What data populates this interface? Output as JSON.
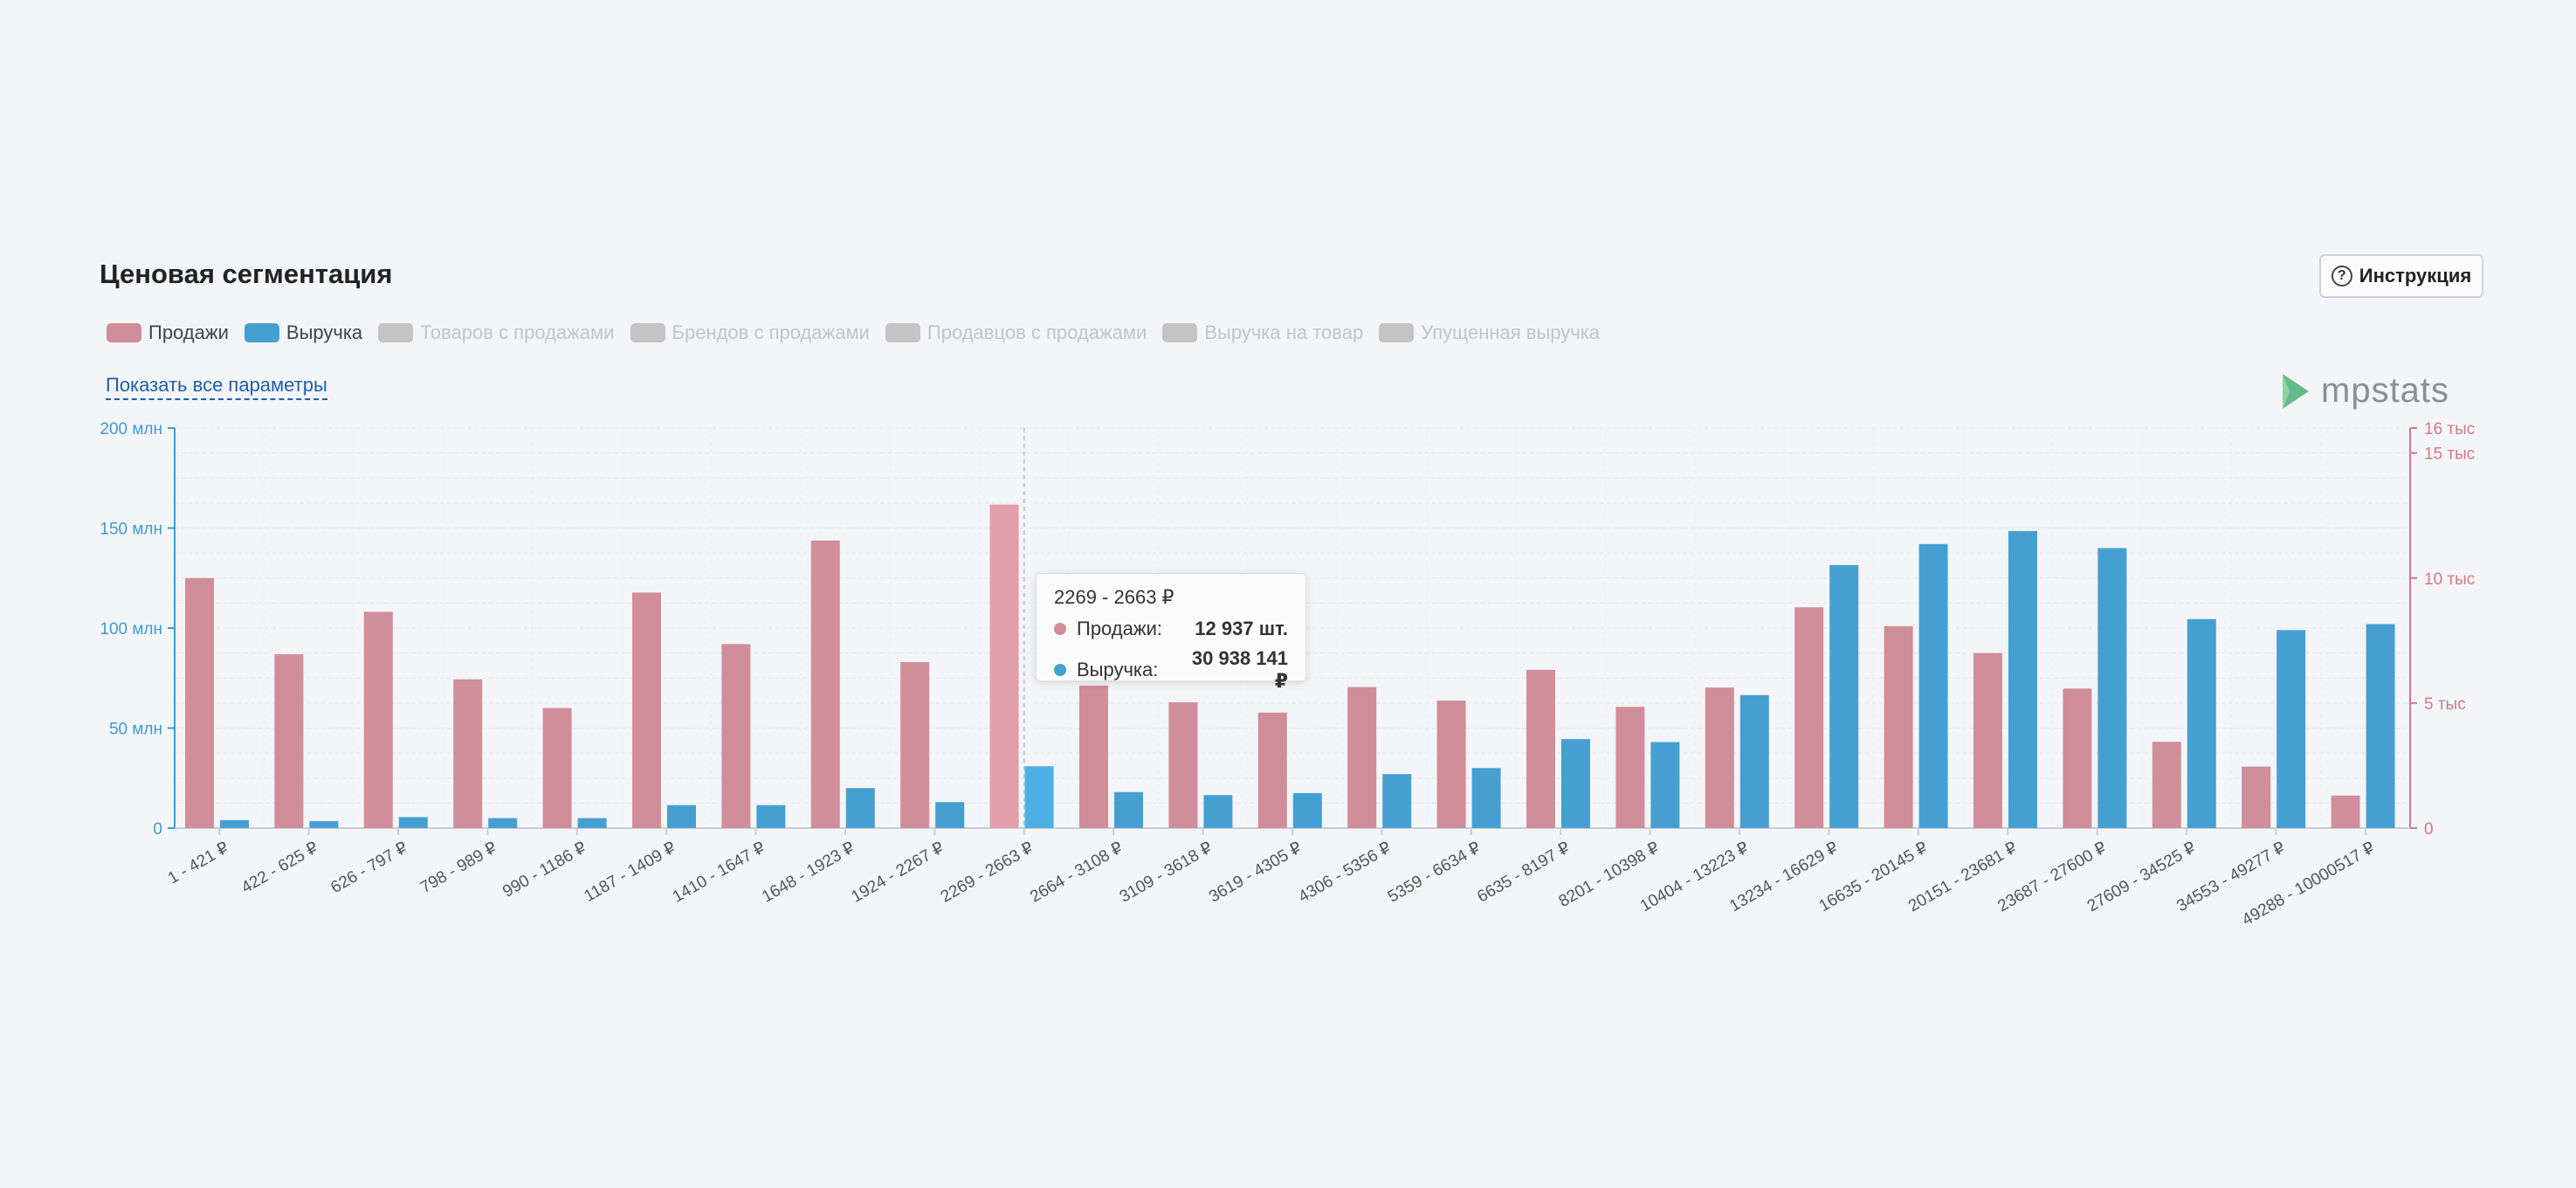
{
  "header": {
    "title": "Ценовая сегментация",
    "instruction_label": "Инструкция",
    "instruction_icon": "question-circle-icon",
    "show_all_label": "Показать все параметры",
    "logo_text": "mpstats"
  },
  "legend": [
    {
      "label": "Продажи",
      "color": "#cf8e99",
      "active": true
    },
    {
      "label": "Выручка",
      "color": "#45a0d1",
      "active": true
    },
    {
      "label": "Товаров с продажами",
      "color": "#c4c4c4",
      "active": false
    },
    {
      "label": "Брендов с продажами",
      "color": "#c4c4c4",
      "active": false
    },
    {
      "label": "Продавцов с продажами",
      "color": "#c4c4c4",
      "active": false
    },
    {
      "label": "Выручка на товар",
      "color": "#c4c4c4",
      "active": false
    },
    {
      "label": "Упущенная выручка",
      "color": "#c4c4c4",
      "active": false
    }
  ],
  "tooltip": {
    "title": "2269 - 2663 ₽",
    "rows": [
      {
        "label": "Продажи:",
        "value": "12 937 шт.",
        "color": "#cf8e99"
      },
      {
        "label": "Выручка:",
        "value": "30 938 141 ₽",
        "color": "#45a0d1"
      }
    ]
  },
  "chart_data": {
    "type": "bar",
    "categories": [
      "1 - 421 ₽",
      "422 - 625 ₽",
      "626 - 797 ₽",
      "798 - 989 ₽",
      "990 - 1186 ₽",
      "1187 - 1409 ₽",
      "1410 - 1647 ₽",
      "1648 - 1923 ₽",
      "1924 - 2267 ₽",
      "2269 - 2663 ₽",
      "2664 - 3108 ₽",
      "3109 - 3618 ₽",
      "3619 - 4305 ₽",
      "4306 - 5356 ₽",
      "5359 - 6634 ₽",
      "6635 - 8197 ₽",
      "8201 - 10398 ₽",
      "10404 - 13223 ₽",
      "13234 - 16629 ₽",
      "16635 - 20145 ₽",
      "20151 - 23681 ₽",
      "23687 - 27600 ₽",
      "27609 - 34525 ₽",
      "34553 - 49277 ₽",
      "49288 - 10000517 ₽"
    ],
    "series": [
      {
        "name": "Продажи",
        "axis": "right",
        "color": "#cf8e99",
        "values": [
          10000,
          6950,
          8650,
          5950,
          4800,
          9420,
          7360,
          11500,
          6640,
          12937,
          5700,
          5030,
          4620,
          5640,
          5100,
          6330,
          4850,
          5620,
          8830,
          8080,
          7000,
          5580,
          3450,
          2460,
          1300
        ]
      },
      {
        "name": "Выручка",
        "axis": "left",
        "color": "#45a0d1",
        "values": [
          4,
          3.5,
          5.5,
          5,
          5,
          11.5,
          11.5,
          20,
          13,
          30.9,
          18,
          16.5,
          17.5,
          27,
          30,
          44.5,
          43,
          66.5,
          131.5,
          142,
          148.5,
          140,
          104.5,
          99,
          102
        ]
      }
    ],
    "y_left": {
      "ticks": [
        "0",
        "50 млн",
        "100 млн",
        "150 млн",
        "200 млн"
      ],
      "range": [
        0,
        200
      ],
      "unit": "млн",
      "color": "#3d9bd1"
    },
    "y_right": {
      "ticks": [
        "0",
        "5 тыс",
        "10 тыс",
        "15 тыс",
        "16 тыс"
      ],
      "range": [
        0,
        16000
      ],
      "color": "#d07a88"
    },
    "highlighted_category": "2269 - 2663 ₽",
    "grid": true,
    "legend_position": "top-left"
  }
}
